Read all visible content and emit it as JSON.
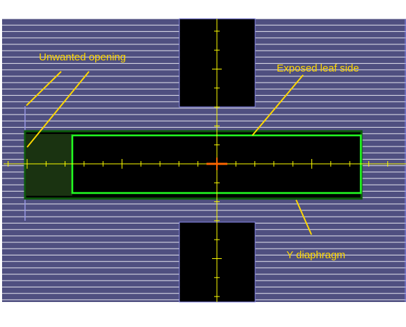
{
  "diagram": {
    "labels": {
      "unwanted_opening": "Unwanted opening",
      "exposed_leaf_side": "Exposed leaf side",
      "y_diaphragm": "Y diaphragm"
    },
    "colors": {
      "leaf_fill": "#4f4f80",
      "leaf_line": "#e6e6f0",
      "leaf_edge": "#8888ee",
      "open_field": "#000000",
      "unwanted_fill": "#1a3311",
      "green_border": "#00ff00",
      "dark_green_border": "#006600",
      "crosshair": "#ffff00",
      "center_mark": "#ff6600",
      "label": "#ffd800"
    }
  }
}
